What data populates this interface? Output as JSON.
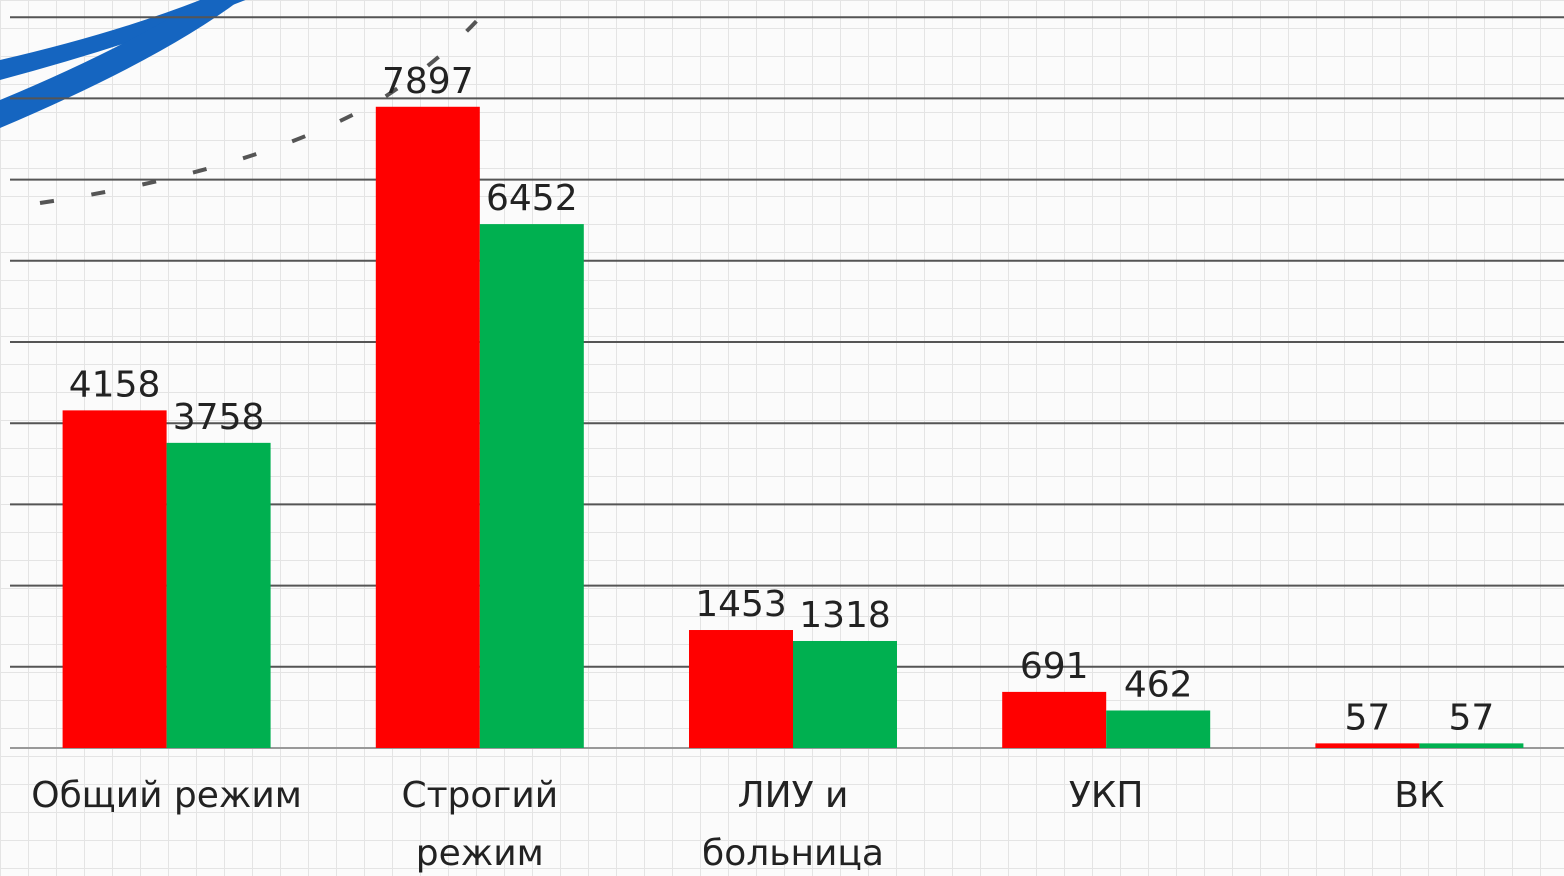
{
  "chart_data": {
    "type": "bar",
    "categories": [
      [
        "Общий режим"
      ],
      [
        "Строгий",
        "режим"
      ],
      [
        "ЛИУ и",
        "больница"
      ],
      [
        "УКП"
      ],
      [
        "ВК"
      ]
    ],
    "series": [
      {
        "color": "#ff0000",
        "values": [
          4158,
          7897,
          1453,
          691,
          57
        ]
      },
      {
        "color": "#00b050",
        "values": [
          3758,
          6452,
          1318,
          462,
          57
        ]
      }
    ],
    "ylim": [
      0,
      9212
    ],
    "yticks": [
      0,
      1000,
      2000,
      3000,
      4000,
      5000,
      6000,
      7000,
      8000,
      9000
    ],
    "grid": true
  }
}
